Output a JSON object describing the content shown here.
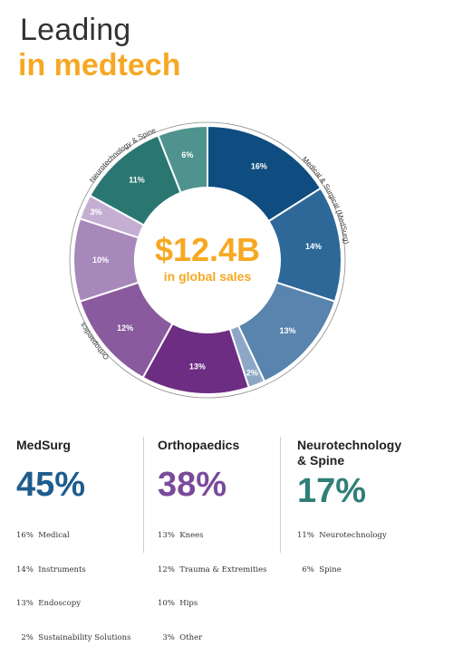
{
  "header": {
    "line1": "Leading",
    "line2": "in medtech"
  },
  "center": {
    "value": "$12.4B",
    "caption": "in global sales"
  },
  "colors": {
    "accent": "#f7a823",
    "medsurg": "#1f5c8e",
    "ortho": "#7a4a9a",
    "neuro": "#2f7f78"
  },
  "chart_data": {
    "type": "pie",
    "title": "",
    "slices": [
      {
        "label": "16%",
        "value": 16,
        "group": "MedSurg",
        "color": "#0f4d80"
      },
      {
        "label": "14%",
        "value": 14,
        "group": "MedSurg",
        "color": "#2d6899"
      },
      {
        "label": "13%",
        "value": 13,
        "group": "MedSurg",
        "color": "#5884ad"
      },
      {
        "label": "2%",
        "value": 2,
        "group": "MedSurg",
        "color": "#8ea7c6"
      },
      {
        "label": "13%",
        "value": 13,
        "group": "Orthopaedics",
        "color": "#6c2d82"
      },
      {
        "label": "12%",
        "value": 12,
        "group": "Orthopaedics",
        "color": "#8a5a9e"
      },
      {
        "label": "10%",
        "value": 10,
        "group": "Orthopaedics",
        "color": "#a788bb"
      },
      {
        "label": "3%",
        "value": 3,
        "group": "Orthopaedics",
        "color": "#c4afd2"
      },
      {
        "label": "11%",
        "value": 11,
        "group": "Neurotechnology & Spine",
        "color": "#2a7772"
      },
      {
        "label": "6%",
        "value": 6,
        "group": "Neurotechnology & Spine",
        "color": "#4f938e"
      }
    ],
    "ring_labels": [
      {
        "text": "Medical & Surgical (MedSurg)",
        "group": "MedSurg"
      },
      {
        "text": "Orthopaedics",
        "group": "Orthopaedics"
      },
      {
        "text": "Neurotechnology & Spine",
        "group": "Neurotechnology & Spine"
      }
    ]
  },
  "columns": [
    {
      "title": "MedSurg",
      "total": "45%",
      "color": "#1f5c8e",
      "items": [
        "16%  Medical",
        "14%  Instruments",
        "13%  Endoscopy",
        "  2%  Sustainability Solutions"
      ]
    },
    {
      "title": "Orthopaedics",
      "total": "38%",
      "color": "#7a4a9a",
      "items": [
        "13%  Knees",
        "12%  Trauma & Extremities",
        "10%  Hips",
        "  3%  Other"
      ]
    },
    {
      "title": "Neurotechnology\n& Spine",
      "total": "17%",
      "color": "#2f7f78",
      "items": [
        "11%  Neurotechnology",
        "  6%  Spine"
      ]
    }
  ]
}
